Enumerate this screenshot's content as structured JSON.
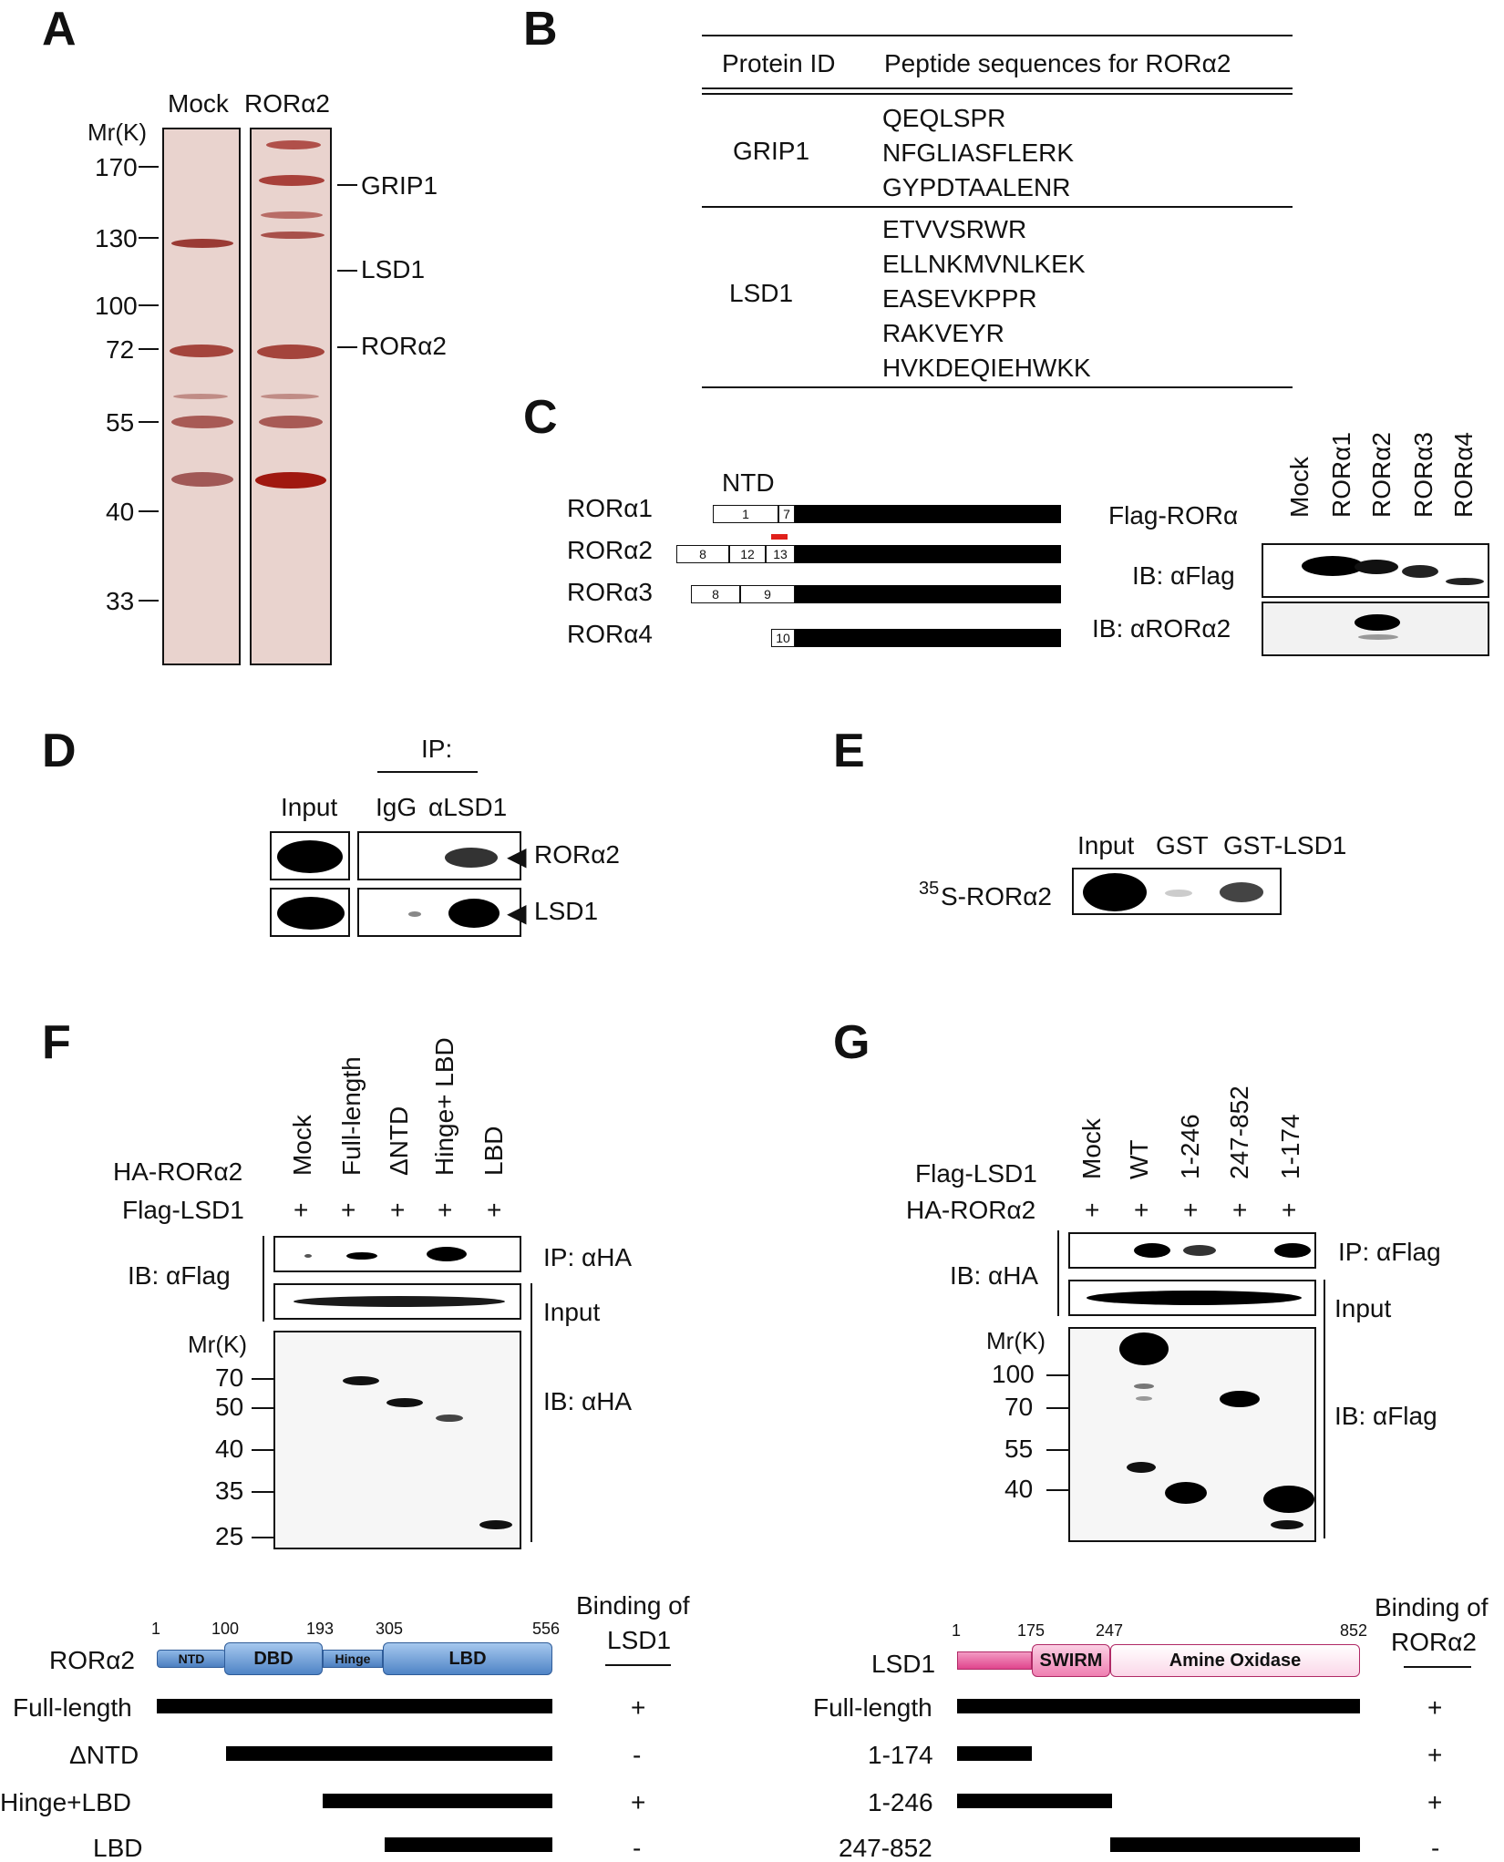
{
  "panelA": {
    "label": "A",
    "lane_mock": "Mock",
    "lane_rora2": "RORα2",
    "mr_label": "Mr(K)",
    "markers": [
      "170",
      "130",
      "100",
      "72",
      "55",
      "40",
      "33"
    ],
    "bands": [
      "GRIP1",
      "LSD1",
      "RORα2"
    ]
  },
  "panelB": {
    "label": "B",
    "col1": "Protein ID",
    "col2": "Peptide sequences for RORα2",
    "grip1": {
      "name": "GRIP1",
      "peptides": [
        "QEQLSPR",
        "NFGLIASFLERK",
        "GYPDTAALENR"
      ]
    },
    "lsd1": {
      "name": "LSD1",
      "peptides": [
        "ETVVSRWR",
        "ELLNKMVNLKEK",
        "EASEVKPPR",
        "RAKVEYR",
        "HVKDEQIEHWKK"
      ]
    }
  },
  "panelC": {
    "label": "C",
    "ntd": "NTD",
    "isoforms": [
      "RORα1",
      "RORα2",
      "RORα3",
      "RORα4"
    ],
    "exons": {
      "r1": [
        "1",
        "7"
      ],
      "r2": [
        "8",
        "12",
        "13"
      ],
      "r3": [
        "8",
        "9"
      ],
      "r4": [
        "10"
      ]
    },
    "flag_label": "Flag-RORα",
    "lanes": [
      "Mock",
      "RORα1",
      "RORα2",
      "RORα3",
      "RORα4"
    ],
    "ib1": "IB: αFlag",
    "ib2": "IB: αRORα2"
  },
  "panelD": {
    "label": "D",
    "ip": "IP:",
    "input": "Input",
    "igg": "IgG",
    "alsd1": "αLSD1",
    "row1": "RORα2",
    "row2": "LSD1"
  },
  "panelE": {
    "label": "E",
    "input": "Input",
    "gst": "GST",
    "gstlsd1": "GST-LSD1",
    "probe": "S-RORα2",
    "probe_sup": "35"
  },
  "panelF": {
    "label": "F",
    "lanes": [
      "Mock",
      "Full-length",
      "ΔNTD",
      "Hinge+ LBD",
      "LBD"
    ],
    "ha_label": "HA-RORα2",
    "flag_label": "Flag-LSD1",
    "plus": "+",
    "ib_left": "IB: αFlag",
    "ip": "IP: αHA",
    "input": "Input",
    "ib_right": "IB: αHA",
    "mr_label": "Mr(K)",
    "markers": [
      "70",
      "50",
      "40",
      "35",
      "25"
    ],
    "domain_title": "RORα2",
    "positions": [
      "1",
      "100",
      "193",
      "305",
      "556"
    ],
    "domains": [
      "NTD",
      "DBD",
      "Hinge",
      "LBD"
    ],
    "binding_title1": "Binding of",
    "binding_title2": "LSD1",
    "constructs": [
      {
        "name": "Full-length",
        "bind": "+"
      },
      {
        "name": "ΔNTD",
        "bind": "-"
      },
      {
        "name": "Hinge+LBD",
        "bind": "+"
      },
      {
        "name": "LBD",
        "bind": "-"
      }
    ]
  },
  "panelG": {
    "label": "G",
    "lanes": [
      "Mock",
      "WT",
      "1-246",
      "247-852",
      "1-174"
    ],
    "flag_label": "Flag-LSD1",
    "ha_label": "HA-RORα2",
    "plus": "+",
    "ib_left": "IB: αHA",
    "ip": "IP: αFlag",
    "input": "Input",
    "ib_right": "IB: αFlag",
    "mr_label": "Mr(K)",
    "markers": [
      "100",
      "70",
      "55",
      "40"
    ],
    "domain_title": "LSD1",
    "positions": [
      "1",
      "175",
      "247",
      "852"
    ],
    "domains": [
      "SWIRM",
      "Amine Oxidase"
    ],
    "binding_title1": "Binding of",
    "binding_title2": "RORα2",
    "constructs": [
      {
        "name": "Full-length",
        "bind": "+"
      },
      {
        "name": "1-174",
        "bind": "+"
      },
      {
        "name": "1-246",
        "bind": "+"
      },
      {
        "name": "247-852",
        "bind": "-"
      }
    ]
  },
  "colors": {
    "gel_bg": "#e9d3ce",
    "gel_band": "#a4443c",
    "pink": "#e8589a",
    "blue": "#5f95d1"
  }
}
